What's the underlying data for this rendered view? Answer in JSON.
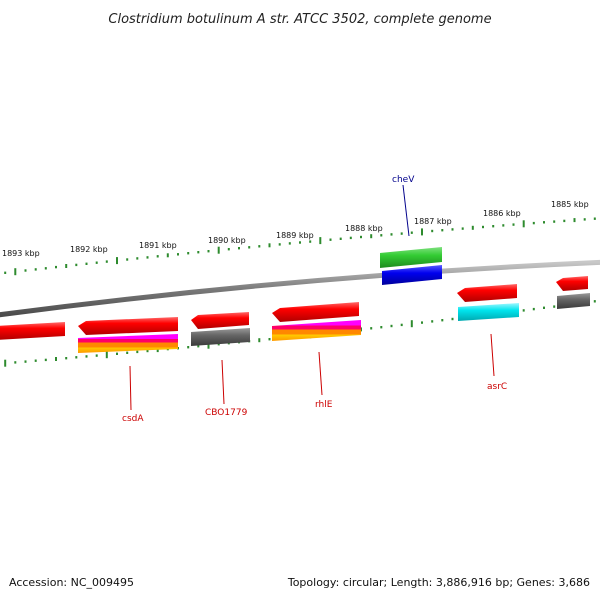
{
  "title": "Clostridium botulinum A str. ATCC 3502, complete genome",
  "footer": {
    "accession": "Accession: NC_009495",
    "summary": "Topology: circular; Length: 3,886,916 bp; Genes: 3,686"
  },
  "ticks": [
    "1893 kbp",
    "1892 kbp",
    "1891 kbp",
    "1890 kbp",
    "1889 kbp",
    "1888 kbp",
    "1887 kbp",
    "1886 kbp",
    "1885 kbp"
  ],
  "genes": [
    {
      "name": "cheV",
      "color": "#00008b"
    },
    {
      "name": "csdA",
      "color": "#cc0000"
    },
    {
      "name": "CBO1779",
      "color": "#cc0000"
    },
    {
      "name": "rhlE",
      "color": "#cc0000"
    },
    {
      "name": "asrC",
      "color": "#cc0000"
    }
  ],
  "colors": {
    "backbone": "#888888",
    "tick": "#2e8b2e",
    "cds": "#ff0000",
    "cds_dark": "#a00000",
    "green_feature": "#33cc33",
    "blue_feature": "#0000ee",
    "cyan_feature": "#00e5ee",
    "gray_feature": "#666666"
  }
}
